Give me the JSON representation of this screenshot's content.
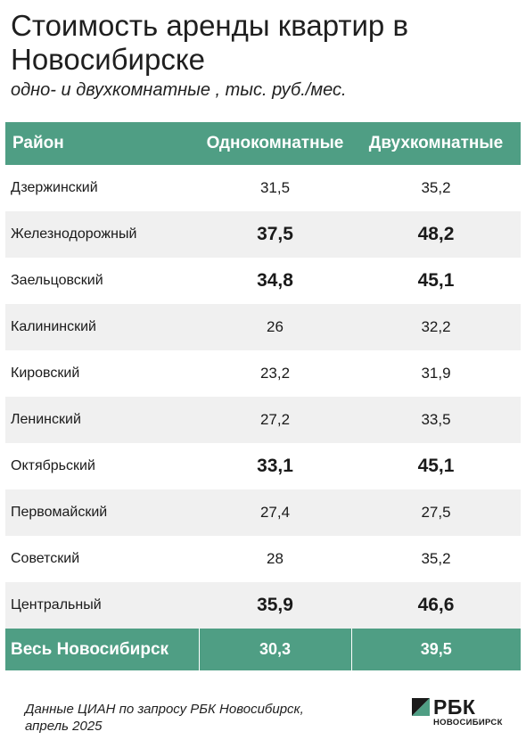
{
  "title": "Стоимость аренды квартир в Новосибирске",
  "subtitle": "одно- и двухкомнатные , тыс. руб./мес.",
  "source": [
    "Данные ЦИАН по запросу РБК Новосибирск,",
    "апрель 2025"
  ],
  "logo": {
    "name": "РБК",
    "city": "НОВОСИБИРСК",
    "colors": [
      "#1a1a1a",
      "#4f9e84"
    ]
  },
  "colors": {
    "header_bg": "#4f9e84",
    "row_alt": "#f0f0f0"
  },
  "chart_data": {
    "type": "table",
    "columns": [
      "Район",
      "Однокомнатные",
      "Двухкомнатные"
    ],
    "rows": [
      {
        "district": "Дзержинский",
        "one_room": "31,5",
        "two_room": "35,2",
        "bold": false
      },
      {
        "district": "Железнодорожный",
        "one_room": "37,5",
        "two_room": "48,2",
        "bold": true
      },
      {
        "district": "Заельцовский",
        "one_room": "34,8",
        "two_room": "45,1",
        "bold": true
      },
      {
        "district": "Калининский",
        "one_room": "26",
        "two_room": "32,2",
        "bold": false
      },
      {
        "district": "Кировский",
        "one_room": "23,2",
        "two_room": "31,9",
        "bold": false
      },
      {
        "district": "Ленинский",
        "one_room": "27,2",
        "two_room": "33,5",
        "bold": false
      },
      {
        "district": "Октябрьский",
        "one_room": "33,1",
        "two_room": "45,1",
        "bold": true
      },
      {
        "district": "Первомайский",
        "one_room": "27,4",
        "two_room": "27,5",
        "bold": false
      },
      {
        "district": "Советский",
        "one_room": "28",
        "two_room": "35,2",
        "bold": false
      },
      {
        "district": "Центральный",
        "one_room": "35,9",
        "two_room": "46,6",
        "bold": true
      }
    ],
    "total": {
      "district": "Весь Новосибирск",
      "one_room": "30,3",
      "two_room": "39,5"
    }
  }
}
